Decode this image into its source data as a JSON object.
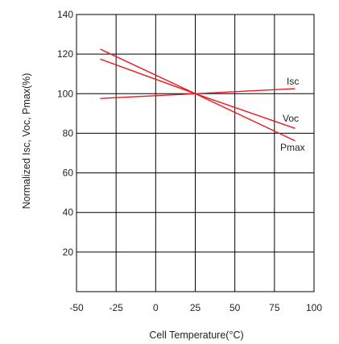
{
  "chart_data": {
    "type": "line",
    "title": "",
    "xlabel": "Cell Temperature(°C)",
    "ylabel": "Normalized Isc, Voc, Pmax(%)",
    "xlim": [
      -50,
      100
    ],
    "ylim": [
      0,
      140
    ],
    "xticks": [
      -50,
      -25,
      0,
      25,
      50,
      75,
      100
    ],
    "yticks": [
      20,
      40,
      60,
      80,
      100,
      120,
      140
    ],
    "grid": true,
    "legend": "inline-right",
    "series": [
      {
        "name": "Isc",
        "color": "#e8191f",
        "x": [
          -35,
          25,
          88
        ],
        "y": [
          97.6,
          100,
          102.5
        ]
      },
      {
        "name": "Voc",
        "color": "#e8191f",
        "x": [
          -35,
          25,
          88
        ],
        "y": [
          117.5,
          100,
          82.5
        ]
      },
      {
        "name": "Pmax",
        "color": "#e8191f",
        "x": [
          -35,
          25,
          88
        ],
        "y": [
          122.5,
          100,
          76.2
        ]
      }
    ]
  }
}
